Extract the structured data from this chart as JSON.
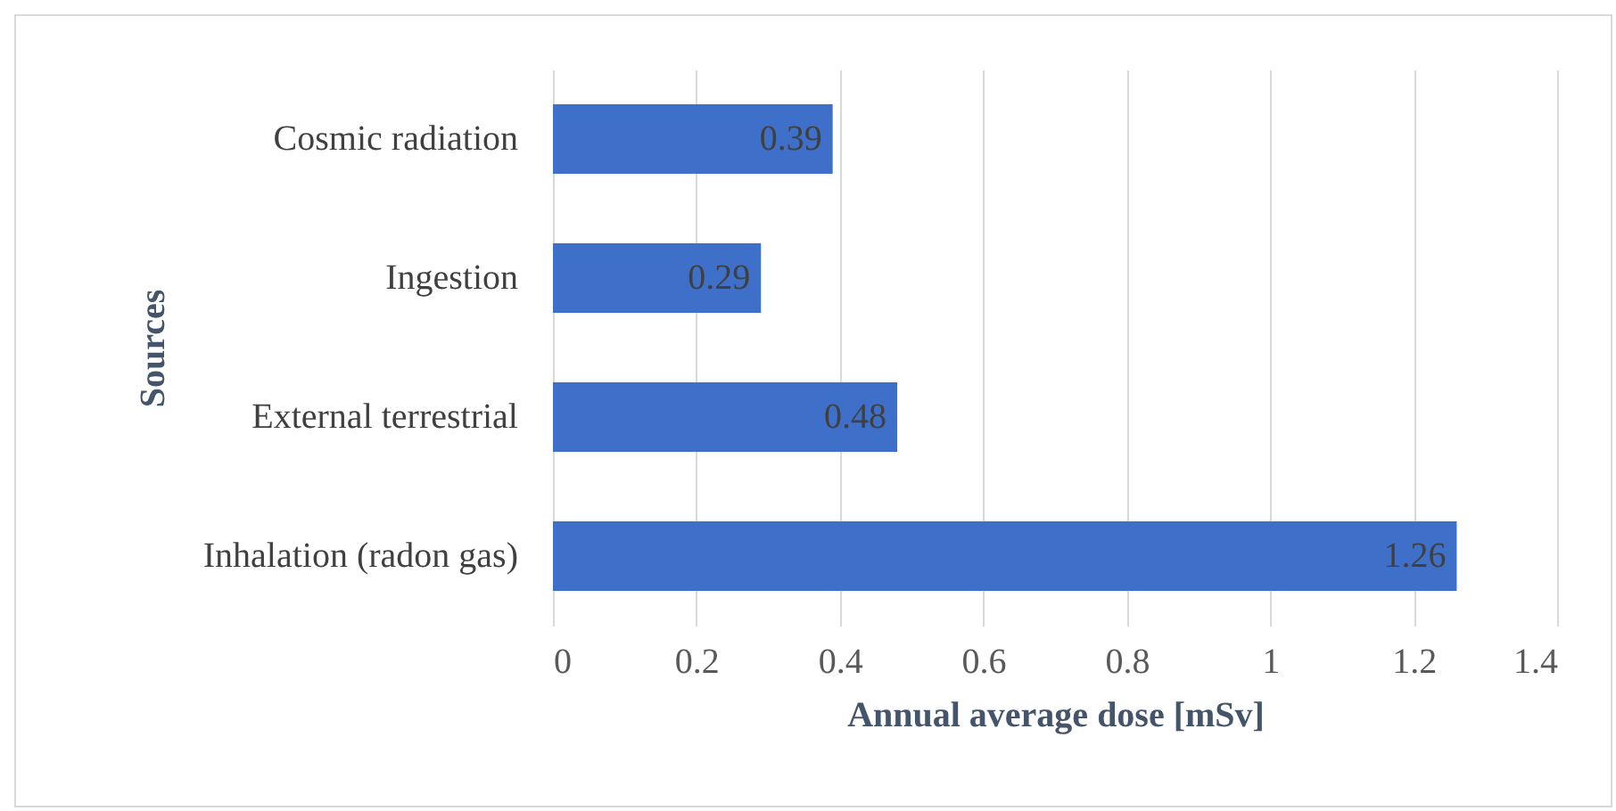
{
  "chart_data": {
    "type": "bar",
    "orientation": "horizontal",
    "xlabel": "Annual average dose [mSv]",
    "ylabel": "Sources",
    "categories": [
      "Cosmic radiation",
      "Ingestion",
      "External terrestrial",
      "Inhalation (radon gas)"
    ],
    "values": [
      0.39,
      0.29,
      0.48,
      1.26
    ],
    "color": "#3e6fc9",
    "xlim": [
      0,
      1.4
    ],
    "xticks": [
      0,
      0.2,
      0.4,
      0.6,
      0.8,
      1,
      1.2,
      1.4
    ],
    "grid": "x",
    "data_labels": true
  }
}
